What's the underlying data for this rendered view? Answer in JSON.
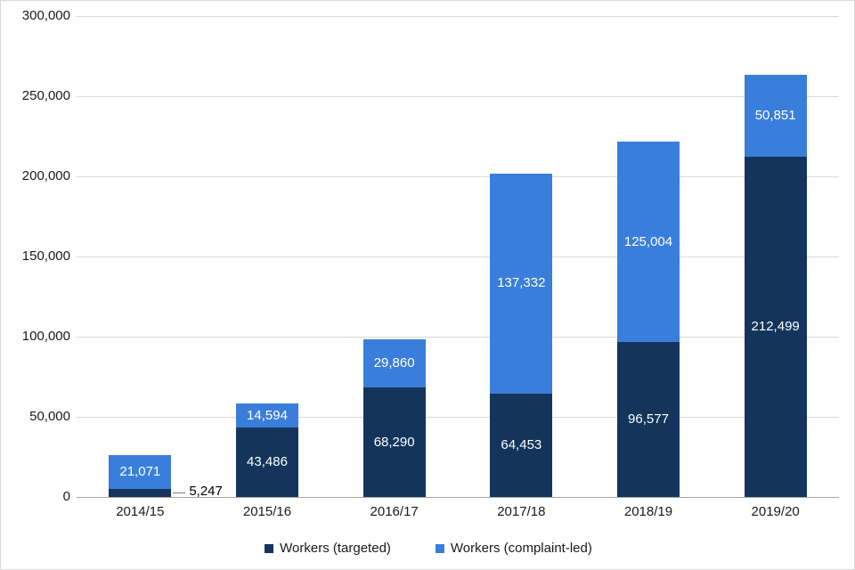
{
  "chart_data": {
    "type": "bar",
    "stacked": true,
    "title": "",
    "categories": [
      "2014/15",
      "2015/16",
      "2016/17",
      "2017/18",
      "2018/19",
      "2019/20"
    ],
    "series": [
      {
        "name": "Workers (targeted)",
        "color": "#13355b",
        "values": [
          5247,
          43486,
          68290,
          64453,
          96577,
          212499
        ]
      },
      {
        "name": "Workers (complaint-led)",
        "color": "#3a7edb",
        "values": [
          21071,
          14594,
          29860,
          137332,
          125004,
          50851
        ]
      }
    ],
    "data_labels": [
      "5,247",
      "43,486",
      "68,290",
      "64,453",
      "96,577",
      "212,499",
      "21,071",
      "14,594",
      "29,860",
      "137,332",
      "125,004",
      "50,851"
    ],
    "ylim": [
      0,
      300000
    ],
    "ytick_step": 50000,
    "ytick_labels": [
      "0",
      "50,000",
      "100,000",
      "150,000",
      "200,000",
      "250,000",
      "300,000"
    ],
    "grid": "horizontal",
    "legend_position": "bottom",
    "callout": {
      "series_index": 0,
      "category_index": 0,
      "label": "5,247"
    }
  }
}
